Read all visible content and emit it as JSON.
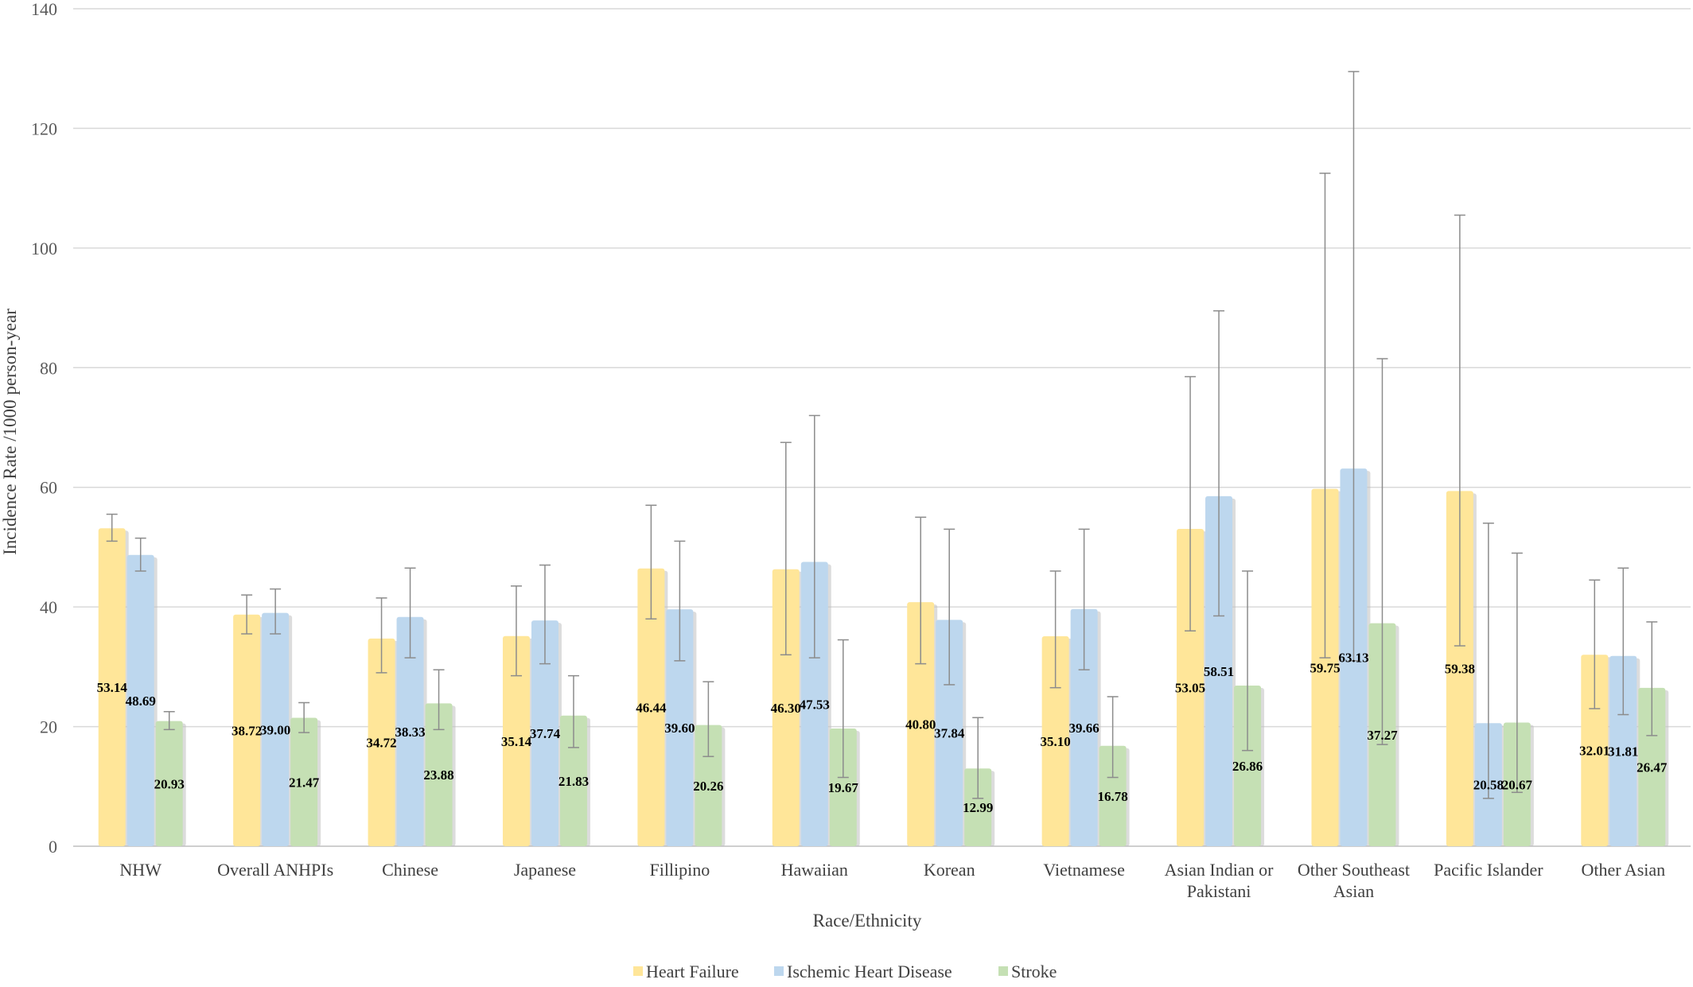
{
  "chart_data": {
    "type": "bar",
    "xlabel": "Race/Ethnicity",
    "ylabel": "Incidence Rate /1000 person-year",
    "ylim": [
      0,
      140
    ],
    "yticks": [
      0,
      20,
      40,
      60,
      80,
      100,
      120,
      140
    ],
    "grid": true,
    "legend_position": "bottom",
    "categories": [
      [
        "NHW"
      ],
      [
        "Overall ANHPIs"
      ],
      [
        "Chinese"
      ],
      [
        "Japanese"
      ],
      [
        "Fillipino"
      ],
      [
        "Hawaiian"
      ],
      [
        "Korean"
      ],
      [
        "Vietnamese"
      ],
      [
        "Asian Indian or",
        "Pakistani"
      ],
      [
        "Other Southeast",
        "Asian"
      ],
      [
        "Pacific Islander"
      ],
      [
        "Other Asian"
      ]
    ],
    "series": [
      {
        "name": "Heart Failure",
        "color": "#FFE699",
        "values": [
          53.14,
          38.72,
          34.72,
          35.14,
          46.44,
          46.3,
          40.8,
          35.1,
          53.05,
          59.75,
          59.38,
          32.01
        ],
        "labels": [
          "53.14",
          "38.72",
          "34.72",
          "35.14",
          "46.44",
          "46.30",
          "40.80",
          "35.10",
          "53.05",
          "59.75",
          "59.38",
          "32.01"
        ],
        "ci_low": [
          51,
          35.5,
          29,
          28.5,
          38,
          32,
          30.5,
          26.5,
          36,
          31.5,
          33.5,
          23
        ],
        "ci_high": [
          55.5,
          42,
          41.5,
          43.5,
          57,
          67.5,
          55,
          46,
          78.5,
          112.5,
          105.5,
          44.5
        ]
      },
      {
        "name": "Ischemic Heart Disease",
        "color": "#BDD7EE",
        "values": [
          48.69,
          39.0,
          38.33,
          37.74,
          39.6,
          47.53,
          37.84,
          39.66,
          58.51,
          63.13,
          20.58,
          31.81
        ],
        "labels": [
          "48.69",
          "39.00",
          "38.33",
          "37.74",
          "39.60",
          "47.53",
          "37.84",
          "39.66",
          "58.51",
          "63.13",
          "20.58",
          "31.81"
        ],
        "ci_low": [
          46,
          35.5,
          31.5,
          30.5,
          31,
          31.5,
          27,
          29.5,
          38.5,
          31,
          8,
          22
        ],
        "ci_high": [
          51.5,
          43,
          46.5,
          47,
          51,
          72,
          53,
          53,
          89.5,
          129.5,
          54,
          46.5
        ]
      },
      {
        "name": "Stroke",
        "color": "#C5E0B4",
        "values": [
          20.93,
          21.47,
          23.88,
          21.83,
          20.26,
          19.67,
          12.99,
          16.78,
          26.86,
          37.27,
          20.67,
          26.47
        ],
        "labels": [
          "20.93",
          "21.47",
          "23.88",
          "21.83",
          "20.26",
          "19.67",
          "12.99",
          "16.78",
          "26.86",
          "37.27",
          "20.67",
          "26.47"
        ],
        "ci_low": [
          19.5,
          19,
          19.5,
          16.5,
          15,
          11.5,
          8,
          11.5,
          16,
          17,
          9,
          18.5
        ],
        "ci_high": [
          22.5,
          24,
          29.5,
          28.5,
          27.5,
          34.5,
          21.5,
          25,
          46,
          81.5,
          49,
          37.5
        ]
      }
    ]
  }
}
